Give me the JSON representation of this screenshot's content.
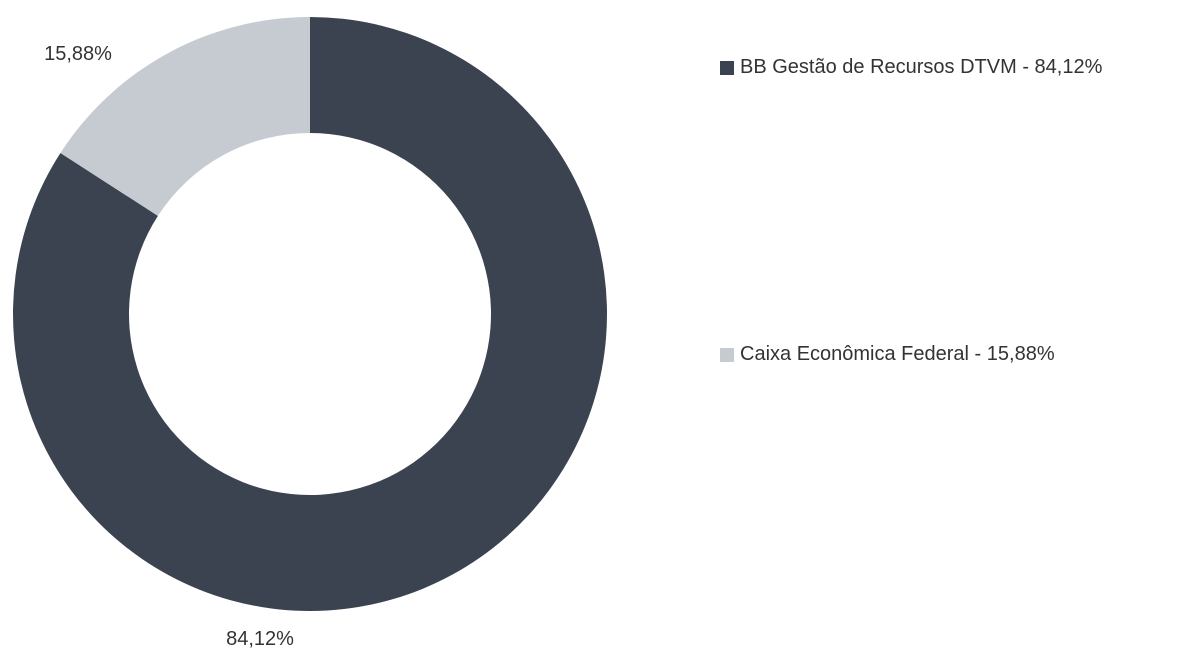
{
  "chart_data": {
    "type": "pie",
    "donut": true,
    "slices": [
      {
        "name": "BB Gestão de Recursos DTVM",
        "value": 84.12,
        "value_label": "84,12%",
        "legend_label": "BB Gestão de Recursos DTVM - 84,12%",
        "color": "#3c4350"
      },
      {
        "name": "Caixa Econômica Federal",
        "value": 15.88,
        "value_label": "15,88%",
        "legend_label": "Caixa Econômica Federal - 15,88%",
        "color": "#c6cbd2"
      }
    ],
    "legend_position": "right"
  }
}
